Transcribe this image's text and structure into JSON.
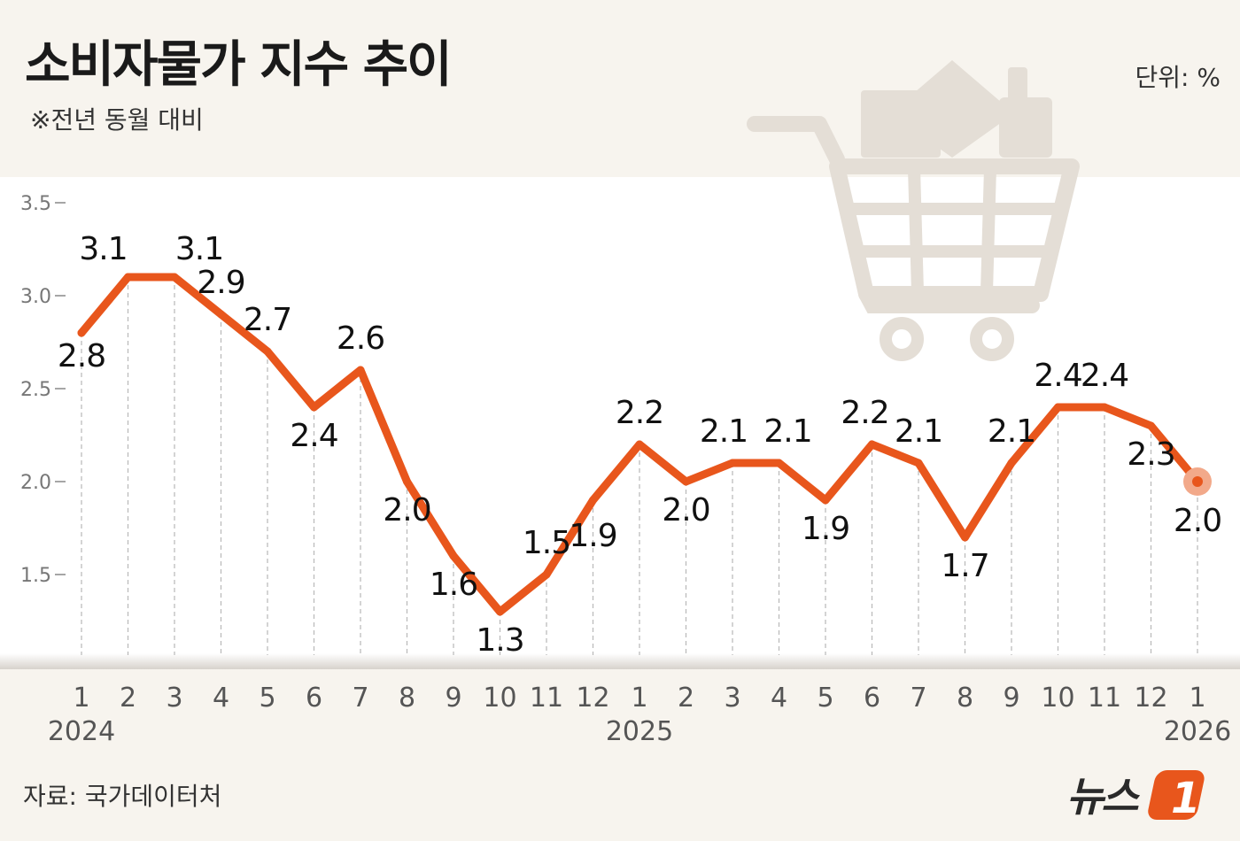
{
  "header": {
    "title": "소비자물가 지수 추이",
    "subtitle": "※전년 동월 대비",
    "unit": "단위:  %"
  },
  "footer": {
    "source": "자료: 국가데이터처",
    "logo_text": "뉴스1"
  },
  "colors": {
    "line": "#e8561c",
    "highlight_dot": "#f2a98a",
    "background": "#f7f4ee",
    "plot_area": "#ffffff",
    "cart": "#e4ded6"
  },
  "icons": [
    "shopping-cart-icon"
  ],
  "chart_data": {
    "type": "line",
    "title": "소비자물가 지수 추이",
    "ylim": [
      1.0,
      3.5
    ],
    "yticks": [
      "3.5",
      "3.0",
      "2.5",
      "2.0",
      "1.5"
    ],
    "ytick_values": [
      3.5,
      3.0,
      2.5,
      2.0,
      1.5
    ],
    "grid": "vertical dashed",
    "categories": [
      "1",
      "2",
      "3",
      "4",
      "5",
      "6",
      "7",
      "8",
      "9",
      "10",
      "11",
      "12",
      "1",
      "2",
      "3",
      "4",
      "5",
      "6",
      "7",
      "8",
      "9",
      "10",
      "11",
      "12",
      "1"
    ],
    "years": [
      {
        "label": "2024",
        "index": 0
      },
      {
        "label": "2025",
        "index": 12
      },
      {
        "label": "2026",
        "index": 24
      }
    ],
    "values": [
      2.8,
      3.1,
      3.1,
      2.9,
      2.7,
      2.4,
      2.6,
      2.0,
      1.6,
      1.3,
      1.5,
      1.9,
      2.2,
      2.0,
      2.1,
      2.1,
      1.9,
      2.2,
      2.1,
      1.7,
      2.1,
      2.4,
      2.4,
      2.3,
      2.0
    ],
    "labels": [
      "2.8",
      "3.1",
      "3.1",
      "2.9",
      "2.7",
      "2.4",
      "2.6",
      "2.0",
      "1.6",
      "1.3",
      "1.5",
      "1.9",
      "2.2",
      "2.0",
      "2.1",
      "2.1",
      "1.9",
      "2.2",
      "2.1",
      "1.7",
      "2.1",
      "2.4",
      "2.4",
      "2.3",
      "2.0"
    ]
  }
}
